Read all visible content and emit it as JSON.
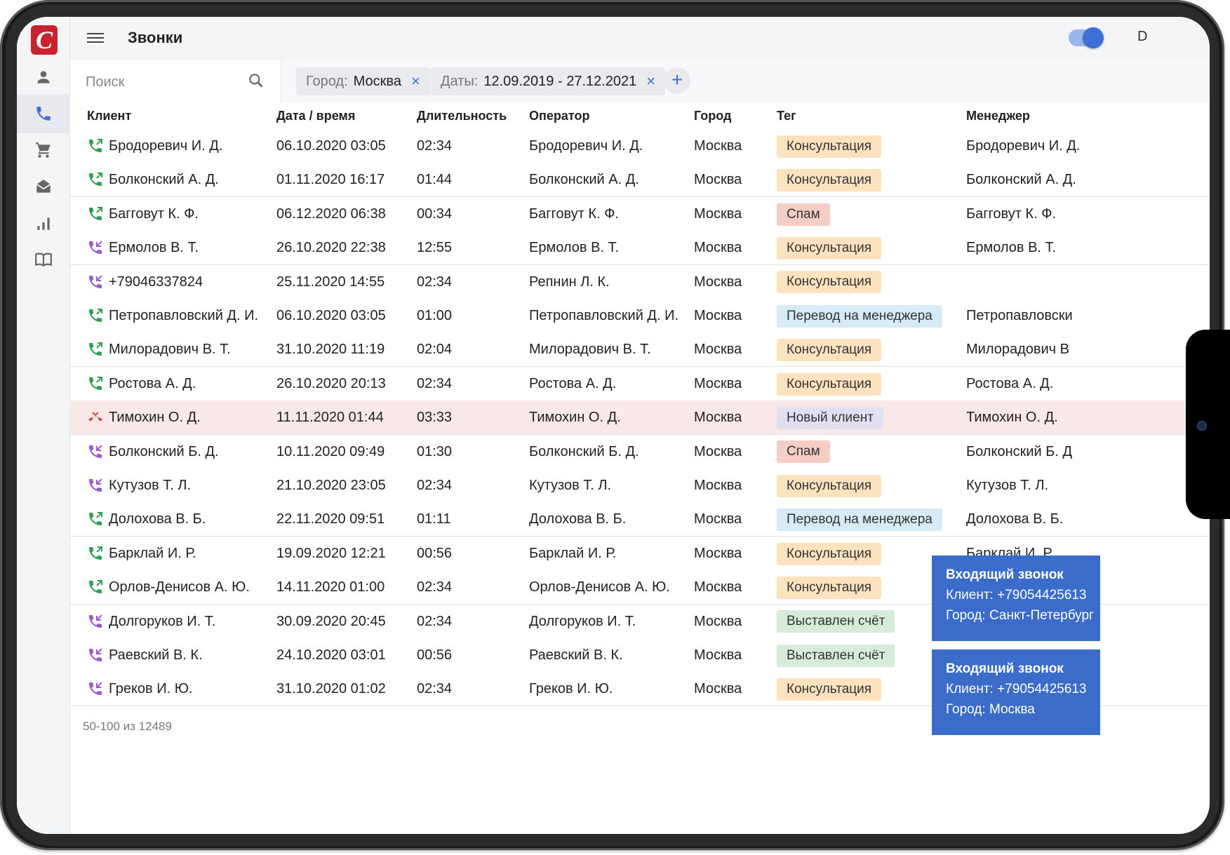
{
  "app": {
    "logo_letter": "C",
    "title": "Звонки",
    "top_right_truncated": "D"
  },
  "sidebar": {
    "items": [
      {
        "name": "user"
      },
      {
        "name": "phone"
      },
      {
        "name": "cart"
      },
      {
        "name": "mail"
      },
      {
        "name": "stats"
      },
      {
        "name": "book"
      }
    ]
  },
  "search": {
    "placeholder": "Поиск"
  },
  "filters": {
    "city": {
      "label": "Город:",
      "value": "Москва"
    },
    "dates": {
      "label": "Даты:",
      "value": "12.09.2019 - 27.12.2021"
    },
    "remove_symbol": "×",
    "add_symbol": "+"
  },
  "table": {
    "headers": {
      "client": "Клиент",
      "date": "Дата / время",
      "duration": "Длительность",
      "operator": "Оператор",
      "city": "Город",
      "tag": "Тег",
      "manager": "Менеджер"
    },
    "rows": [
      {
        "dir": "out",
        "client": "Бродоревич И. Д.",
        "date": "06.10.2020 03:05",
        "duration": "02:34",
        "operator": "Бродоревич И. Д.",
        "city": "Москва",
        "tag": "Консультация",
        "tag_type": "consult",
        "manager": "Бродоревич И. Д."
      },
      {
        "dir": "out",
        "client": "Болконский А. Д.",
        "date": "01.11.2020 16:17",
        "duration": "01:44",
        "operator": "Болконский А. Д.",
        "city": "Москва",
        "tag": "Консультация",
        "tag_type": "consult",
        "manager": "Болконский А. Д."
      },
      {
        "dir": "out",
        "client": "Багговут К. Ф.",
        "date": "06.12.2020 06:38",
        "duration": "00:34",
        "operator": "Багговут К. Ф.",
        "city": "Москва",
        "tag": "Спам",
        "tag_type": "spam",
        "manager": "Багговут К. Ф."
      },
      {
        "dir": "in",
        "client": "Ермолов В. Т.",
        "date": "26.10.2020 22:38",
        "duration": "12:55",
        "operator": "Ермолов В. Т.",
        "city": "Москва",
        "tag": "Консультация",
        "tag_type": "consult",
        "manager": "Ермолов В. Т."
      },
      {
        "dir": "in",
        "client": "+79046337824",
        "date": "25.11.2020 14:55",
        "duration": "02:34",
        "operator": "Репнин Л. К.",
        "city": "Москва",
        "tag": "Консультация",
        "tag_type": "consult",
        "manager": ""
      },
      {
        "dir": "out",
        "client": "Петропавловский Д. И.",
        "date": "06.10.2020 03:05",
        "duration": "01:00",
        "operator": "Петропавловский Д. И.",
        "city": "Москва",
        "tag": "Перевод на менеджера",
        "tag_type": "transfer",
        "manager": "Петропавловски"
      },
      {
        "dir": "out",
        "client": "Милорадович В. Т.",
        "date": "31.10.2020 11:19",
        "duration": "02:04",
        "operator": "Милорадович В. Т.",
        "city": "Москва",
        "tag": "Консультация",
        "tag_type": "consult",
        "manager": "Милорадович В"
      },
      {
        "dir": "out",
        "client": "Ростова А. Д.",
        "date": "26.10.2020 20:13",
        "duration": "02:34",
        "operator": "Ростова А. Д.",
        "city": "Москва",
        "tag": "Консультация",
        "tag_type": "consult",
        "manager": "Ростова А. Д."
      },
      {
        "dir": "missed",
        "client": "Тимохин О. Д.",
        "date": "11.11.2020 01:44",
        "duration": "03:33",
        "operator": "Тимохин О. Д.",
        "city": "Москва",
        "tag": "Новый клиент",
        "tag_type": "newc",
        "manager": "Тимохин О. Д."
      },
      {
        "dir": "in",
        "client": "Болконский Б. Д.",
        "date": "10.11.2020 09:49",
        "duration": "01:30",
        "operator": "Болконский Б. Д.",
        "city": "Москва",
        "tag": "Спам",
        "tag_type": "spam",
        "manager": "Болконский Б. Д"
      },
      {
        "dir": "in",
        "client": "Кутузов Т. Л.",
        "date": "21.10.2020 23:05",
        "duration": "02:34",
        "operator": "Кутузов Т. Л.",
        "city": "Москва",
        "tag": "Консультация",
        "tag_type": "consult",
        "manager": "Кутузов Т. Л."
      },
      {
        "dir": "out",
        "client": "Долохова  В. Б.",
        "date": "22.11.2020 09:51",
        "duration": "01:11",
        "operator": "Долохова  В. Б.",
        "city": "Москва",
        "tag": "Перевод на менеджера",
        "tag_type": "transfer",
        "manager": "Долохова  В. Б."
      },
      {
        "dir": "out",
        "client": "Барклай И. Р.",
        "date": "19.09.2020 12:21",
        "duration": "00:56",
        "operator": "Барклай И. Р.",
        "city": "Москва",
        "tag": "Консультация",
        "tag_type": "consult",
        "manager": "Барклай И. Р."
      },
      {
        "dir": "out",
        "client": "Орлов-Денисов А. Ю.",
        "date": "14.11.2020 01:00",
        "duration": "02:34",
        "operator": "Орлов-Денисов А. Ю.",
        "city": "Москва",
        "tag": "Консультация",
        "tag_type": "consult",
        "manager": ""
      },
      {
        "dir": "in",
        "client": "Долгоруков И. Т.",
        "date": "30.09.2020 20:45",
        "duration": "02:34",
        "operator": "Долгоруков И. Т.",
        "city": "Москва",
        "tag": "Выставлен счёт",
        "tag_type": "invoice",
        "manager": ""
      },
      {
        "dir": "in",
        "client": "Раевский В. К.",
        "date": "24.10.2020 03:01",
        "duration": "00:56",
        "operator": "Раевский В. К.",
        "city": "Москва",
        "tag": "Выставлен счёт",
        "tag_type": "invoice",
        "manager": ""
      },
      {
        "dir": "in",
        "client": "Греков И. Ю.",
        "date": "31.10.2020 01:02",
        "duration": "02:34",
        "operator": "Греков И. Ю.",
        "city": "Москва",
        "tag": "Консультация",
        "tag_type": "consult",
        "manager": ""
      }
    ]
  },
  "pagination": {
    "text": "50-100 из 12489"
  },
  "notifications": [
    {
      "title": "Входящий звонок",
      "client": "Клиент: +79054425613",
      "city": "Город: Санкт-Петербург"
    },
    {
      "title": "Входящий звонок",
      "client": "Клиент: +79054425613",
      "city": "Город: Москва"
    }
  ],
  "colors": {
    "accent": "#3f6fd4",
    "out_call": "#2e9e4f",
    "in_call": "#9b59d0",
    "missed_call": "#d64545",
    "toast_bg": "#3b6cc9"
  }
}
